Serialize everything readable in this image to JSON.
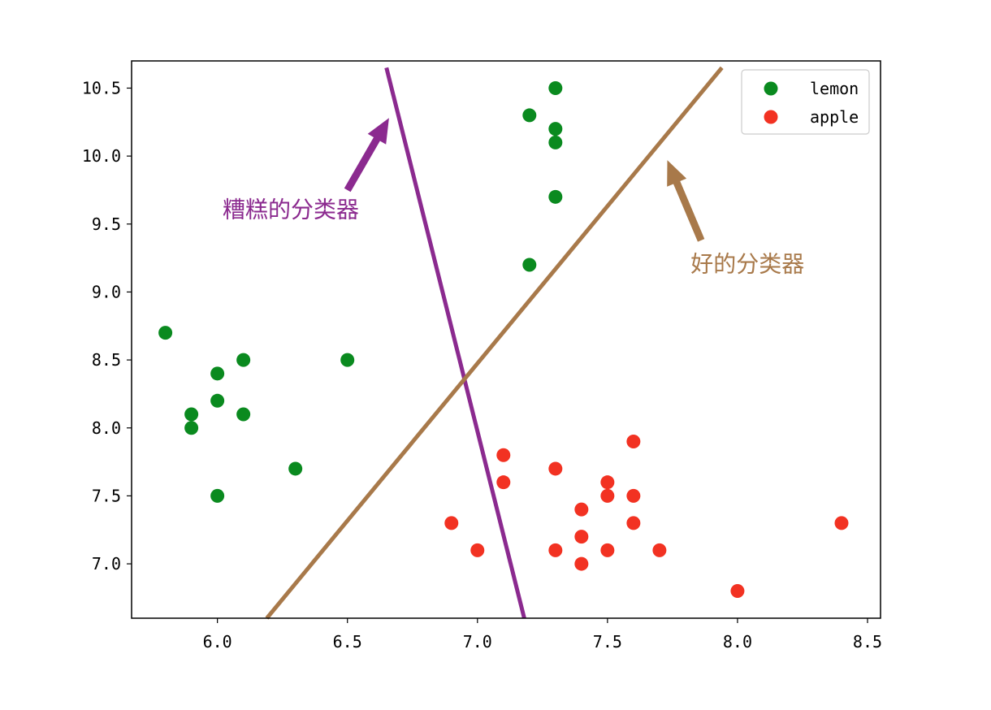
{
  "chart_data": {
    "type": "scatter",
    "xlim": [
      5.67,
      8.55
    ],
    "ylim": [
      6.6,
      10.7
    ],
    "xticks": [
      6.0,
      6.5,
      7.0,
      7.5,
      8.0,
      8.5
    ],
    "xtick_labels": [
      "6.0",
      "6.5",
      "7.0",
      "7.5",
      "8.0",
      "8.5"
    ],
    "yticks": [
      7.0,
      7.5,
      8.0,
      8.5,
      9.0,
      9.5,
      10.0,
      10.5
    ],
    "ytick_labels": [
      "7.0",
      "7.5",
      "8.0",
      "8.5",
      "9.0",
      "9.5",
      "10.0",
      "10.5"
    ],
    "grid": false,
    "legend": "top-right",
    "series": [
      {
        "name": "lemon",
        "color": "#0a8a1f",
        "points": [
          [
            5.8,
            8.7
          ],
          [
            5.9,
            8.1
          ],
          [
            5.9,
            8.0
          ],
          [
            6.0,
            8.4
          ],
          [
            6.0,
            8.2
          ],
          [
            6.0,
            7.5
          ],
          [
            6.1,
            8.5
          ],
          [
            6.1,
            8.1
          ],
          [
            6.3,
            7.7
          ],
          [
            6.5,
            8.5
          ],
          [
            7.2,
            10.3
          ],
          [
            7.2,
            9.2
          ],
          [
            7.3,
            10.5
          ],
          [
            7.3,
            10.2
          ],
          [
            7.3,
            10.1
          ],
          [
            7.3,
            9.7
          ]
        ]
      },
      {
        "name": "apple",
        "color": "#f23222",
        "points": [
          [
            6.9,
            7.3
          ],
          [
            7.0,
            7.1
          ],
          [
            7.1,
            7.8
          ],
          [
            7.1,
            7.6
          ],
          [
            7.3,
            7.7
          ],
          [
            7.3,
            7.1
          ],
          [
            7.4,
            7.4
          ],
          [
            7.4,
            7.2
          ],
          [
            7.4,
            7.0
          ],
          [
            7.5,
            7.6
          ],
          [
            7.5,
            7.5
          ],
          [
            7.5,
            7.1
          ],
          [
            7.6,
            7.9
          ],
          [
            7.6,
            7.5
          ],
          [
            7.6,
            7.3
          ],
          [
            7.7,
            7.1
          ],
          [
            8.0,
            6.8
          ],
          [
            8.4,
            7.3
          ]
        ]
      }
    ],
    "lines": [
      {
        "name": "bad-classifier",
        "color": "#8b2a8f",
        "x": [
          6.65,
          7.18
        ],
        "y": [
          10.65,
          6.6
        ]
      },
      {
        "name": "good-classifier",
        "color": "#a8794a",
        "x": [
          6.19,
          7.94
        ],
        "y": [
          6.6,
          10.65
        ]
      }
    ],
    "annotations": [
      {
        "text": "糟糕的分类器",
        "color": "#8b2a8f",
        "text_xy": [
          6.02,
          9.55
        ],
        "arrow_from": [
          6.5,
          9.75
        ],
        "arrow_to": [
          6.66,
          10.28
        ]
      },
      {
        "text": "好的分类器",
        "color": "#a8794a",
        "text_xy": [
          7.82,
          9.15
        ],
        "arrow_from": [
          7.86,
          9.38
        ],
        "arrow_to": [
          7.73,
          9.97
        ]
      }
    ]
  }
}
